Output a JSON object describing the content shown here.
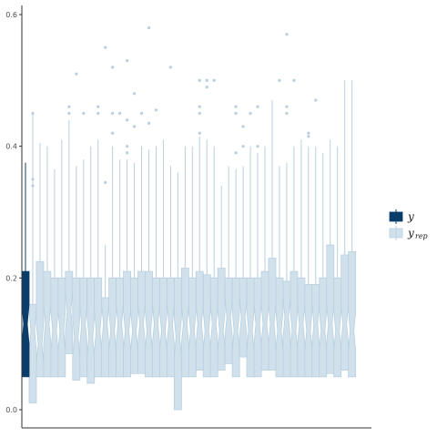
{
  "chart_data": {
    "type": "boxplot",
    "title": "",
    "xlabel": "",
    "ylabel": "",
    "ylim": [
      0,
      0.6
    ],
    "y_ticks": [
      "0.0",
      "0.2",
      "0.4",
      "0.6"
    ],
    "grid": false,
    "legend_position": "right",
    "legend": [
      {
        "name": "y",
        "sub": "",
        "color": "#0b3d6b",
        "fill": "#0b3d6b"
      },
      {
        "name": "y",
        "sub": "rep",
        "color": "#b8cfe0",
        "fill": "#d1e1ec"
      }
    ],
    "observed": {
      "name": "y",
      "min": 0.05,
      "q1": 0.05,
      "median": 0.13,
      "q3": 0.21,
      "max": 0.375,
      "notch_lo": 0.1,
      "notch_hi": 0.16,
      "outliers": []
    },
    "replicates": [
      {
        "min": 0.01,
        "q1": 0.01,
        "median": 0.12,
        "q3": 0.16,
        "max": 0.45,
        "notch_lo": 0.09,
        "notch_hi": 0.15,
        "outliers": [
          0.34,
          0.35,
          0.45
        ]
      },
      {
        "min": 0.05,
        "q1": 0.05,
        "median": 0.1,
        "q3": 0.225,
        "max": 0.405,
        "notch_lo": 0.07,
        "notch_hi": 0.13,
        "outliers": []
      },
      {
        "min": 0.05,
        "q1": 0.05,
        "median": 0.13,
        "q3": 0.21,
        "max": 0.4,
        "notch_lo": 0.1,
        "notch_hi": 0.16,
        "outliers": []
      },
      {
        "min": 0.05,
        "q1": 0.05,
        "median": 0.12,
        "q3": 0.2,
        "max": 0.365,
        "notch_lo": 0.09,
        "notch_hi": 0.15,
        "outliers": []
      },
      {
        "min": 0.05,
        "q1": 0.05,
        "median": 0.12,
        "q3": 0.2,
        "max": 0.41,
        "notch_lo": 0.09,
        "notch_hi": 0.15,
        "outliers": []
      },
      {
        "min": 0.085,
        "q1": 0.085,
        "median": 0.15,
        "q3": 0.21,
        "max": 0.44,
        "notch_lo": 0.12,
        "notch_hi": 0.18,
        "outliers": [
          0.45,
          0.46
        ]
      },
      {
        "min": 0.045,
        "q1": 0.045,
        "median": 0.11,
        "q3": 0.2,
        "max": 0.37,
        "notch_lo": 0.08,
        "notch_hi": 0.14,
        "outliers": [
          0.51
        ]
      },
      {
        "min": 0.05,
        "q1": 0.05,
        "median": 0.13,
        "q3": 0.2,
        "max": 0.38,
        "notch_lo": 0.1,
        "notch_hi": 0.16,
        "outliers": [
          0.45
        ]
      },
      {
        "min": 0.04,
        "q1": 0.04,
        "median": 0.11,
        "q3": 0.2,
        "max": 0.4,
        "notch_lo": 0.08,
        "notch_hi": 0.14,
        "outliers": []
      },
      {
        "min": 0.05,
        "q1": 0.05,
        "median": 0.12,
        "q3": 0.2,
        "max": 0.41,
        "notch_lo": 0.09,
        "notch_hi": 0.15,
        "outliers": [
          0.45,
          0.46
        ]
      },
      {
        "min": 0.05,
        "q1": 0.05,
        "median": 0.13,
        "q3": 0.17,
        "max": 0.25,
        "notch_lo": 0.1,
        "notch_hi": 0.16,
        "outliers": [
          0.345,
          0.55
        ]
      },
      {
        "min": 0.05,
        "q1": 0.05,
        "median": 0.12,
        "q3": 0.2,
        "max": 0.4,
        "notch_lo": 0.09,
        "notch_hi": 0.15,
        "outliers": [
          0.42,
          0.45,
          0.52
        ]
      },
      {
        "min": 0.05,
        "q1": 0.05,
        "median": 0.13,
        "q3": 0.2,
        "max": 0.38,
        "notch_lo": 0.1,
        "notch_hi": 0.16,
        "outliers": [
          0.45
        ]
      },
      {
        "min": 0.05,
        "q1": 0.05,
        "median": 0.12,
        "q3": 0.21,
        "max": 0.38,
        "notch_lo": 0.09,
        "notch_hi": 0.15,
        "outliers": [
          0.39,
          0.4,
          0.44,
          0.53
        ]
      },
      {
        "min": 0.055,
        "q1": 0.055,
        "median": 0.12,
        "q3": 0.2,
        "max": 0.375,
        "notch_lo": 0.09,
        "notch_hi": 0.15,
        "outliers": [
          0.43,
          0.48
        ]
      },
      {
        "min": 0.055,
        "q1": 0.055,
        "median": 0.13,
        "q3": 0.21,
        "max": 0.4,
        "notch_lo": 0.1,
        "notch_hi": 0.16,
        "outliers": [
          0.45
        ]
      },
      {
        "min": 0.05,
        "q1": 0.05,
        "median": 0.12,
        "q3": 0.21,
        "max": 0.395,
        "notch_lo": 0.09,
        "notch_hi": 0.15,
        "outliers": [
          0.435,
          0.58
        ]
      },
      {
        "min": 0.05,
        "q1": 0.05,
        "median": 0.13,
        "q3": 0.2,
        "max": 0.4,
        "notch_lo": 0.1,
        "notch_hi": 0.16,
        "outliers": [
          0.455
        ]
      },
      {
        "min": 0.05,
        "q1": 0.05,
        "median": 0.12,
        "q3": 0.2,
        "max": 0.41,
        "notch_lo": 0.09,
        "notch_hi": 0.15,
        "outliers": []
      },
      {
        "min": 0.05,
        "q1": 0.05,
        "median": 0.13,
        "q3": 0.2,
        "max": 0.37,
        "notch_lo": 0.1,
        "notch_hi": 0.16,
        "outliers": [
          0.52
        ]
      },
      {
        "min": 0.0,
        "q1": 0.0,
        "median": 0.11,
        "q3": 0.2,
        "max": 0.36,
        "notch_lo": 0.08,
        "notch_hi": 0.14,
        "outliers": []
      },
      {
        "min": 0.05,
        "q1": 0.05,
        "median": 0.13,
        "q3": 0.215,
        "max": 0.4,
        "notch_lo": 0.1,
        "notch_hi": 0.16,
        "outliers": []
      },
      {
        "min": 0.05,
        "q1": 0.05,
        "median": 0.12,
        "q3": 0.2,
        "max": 0.4,
        "notch_lo": 0.09,
        "notch_hi": 0.15,
        "outliers": []
      },
      {
        "min": 0.06,
        "q1": 0.06,
        "median": 0.13,
        "q3": 0.21,
        "max": 0.415,
        "notch_lo": 0.1,
        "notch_hi": 0.16,
        "outliers": [
          0.42,
          0.45,
          0.46,
          0.5
        ]
      },
      {
        "min": 0.05,
        "q1": 0.05,
        "median": 0.12,
        "q3": 0.205,
        "max": 0.41,
        "notch_lo": 0.09,
        "notch_hi": 0.15,
        "outliers": [
          0.49,
          0.5
        ]
      },
      {
        "min": 0.05,
        "q1": 0.05,
        "median": 0.13,
        "q3": 0.2,
        "max": 0.4,
        "notch_lo": 0.1,
        "notch_hi": 0.16,
        "outliers": [
          0.5
        ]
      },
      {
        "min": 0.06,
        "q1": 0.06,
        "median": 0.12,
        "q3": 0.215,
        "max": 0.34,
        "notch_lo": 0.09,
        "notch_hi": 0.15,
        "outliers": []
      },
      {
        "min": 0.07,
        "q1": 0.07,
        "median": 0.14,
        "q3": 0.2,
        "max": 0.37,
        "notch_lo": 0.11,
        "notch_hi": 0.17,
        "outliers": []
      },
      {
        "min": 0.05,
        "q1": 0.05,
        "median": 0.12,
        "q3": 0.2,
        "max": 0.365,
        "notch_lo": 0.09,
        "notch_hi": 0.15,
        "outliers": [
          0.39,
          0.45,
          0.46
        ]
      },
      {
        "min": 0.08,
        "q1": 0.08,
        "median": 0.14,
        "q3": 0.2,
        "max": 0.37,
        "notch_lo": 0.11,
        "notch_hi": 0.17,
        "outliers": [
          0.4,
          0.43
        ]
      },
      {
        "min": 0.05,
        "q1": 0.05,
        "median": 0.12,
        "q3": 0.2,
        "max": 0.4,
        "notch_lo": 0.09,
        "notch_hi": 0.15,
        "outliers": [
          0.45
        ]
      },
      {
        "min": 0.05,
        "q1": 0.05,
        "median": 0.13,
        "q3": 0.2,
        "max": 0.39,
        "notch_lo": 0.1,
        "notch_hi": 0.16,
        "outliers": [
          0.4,
          0.46
        ]
      },
      {
        "min": 0.06,
        "q1": 0.06,
        "median": 0.13,
        "q3": 0.21,
        "max": 0.4,
        "notch_lo": 0.1,
        "notch_hi": 0.16,
        "outliers": []
      },
      {
        "min": 0.06,
        "q1": 0.06,
        "median": 0.13,
        "q3": 0.23,
        "max": 0.47,
        "notch_lo": 0.1,
        "notch_hi": 0.16,
        "outliers": []
      },
      {
        "min": 0.05,
        "q1": 0.05,
        "median": 0.12,
        "q3": 0.2,
        "max": 0.37,
        "notch_lo": 0.09,
        "notch_hi": 0.15,
        "outliers": [
          0.5
        ]
      },
      {
        "min": 0.05,
        "q1": 0.05,
        "median": 0.14,
        "q3": 0.195,
        "max": 0.375,
        "notch_lo": 0.11,
        "notch_hi": 0.17,
        "outliers": [
          0.45,
          0.46,
          0.57
        ]
      },
      {
        "min": 0.05,
        "q1": 0.05,
        "median": 0.12,
        "q3": 0.21,
        "max": 0.4,
        "notch_lo": 0.09,
        "notch_hi": 0.15,
        "outliers": [
          0.5
        ]
      },
      {
        "min": 0.05,
        "q1": 0.05,
        "median": 0.13,
        "q3": 0.2,
        "max": 0.41,
        "notch_lo": 0.1,
        "notch_hi": 0.16,
        "outliers": []
      },
      {
        "min": 0.05,
        "q1": 0.05,
        "median": 0.12,
        "q3": 0.19,
        "max": 0.4,
        "notch_lo": 0.09,
        "notch_hi": 0.15,
        "outliers": [
          0.415,
          0.42
        ]
      },
      {
        "min": 0.05,
        "q1": 0.05,
        "median": 0.13,
        "q3": 0.19,
        "max": 0.4,
        "notch_lo": 0.1,
        "notch_hi": 0.16,
        "outliers": [
          0.47
        ]
      },
      {
        "min": 0.05,
        "q1": 0.05,
        "median": 0.12,
        "q3": 0.2,
        "max": 0.39,
        "notch_lo": 0.09,
        "notch_hi": 0.15,
        "outliers": []
      },
      {
        "min": 0.055,
        "q1": 0.055,
        "median": 0.13,
        "q3": 0.25,
        "max": 0.41,
        "notch_lo": 0.1,
        "notch_hi": 0.16,
        "outliers": []
      },
      {
        "min": 0.05,
        "q1": 0.05,
        "median": 0.12,
        "q3": 0.2,
        "max": 0.4,
        "notch_lo": 0.09,
        "notch_hi": 0.15,
        "outliers": []
      },
      {
        "min": 0.06,
        "q1": 0.06,
        "median": 0.13,
        "q3": 0.235,
        "max": 0.5,
        "notch_lo": 0.1,
        "notch_hi": 0.16,
        "outliers": []
      },
      {
        "min": 0.05,
        "q1": 0.05,
        "median": 0.12,
        "q3": 0.24,
        "max": 0.5,
        "notch_lo": 0.09,
        "notch_hi": 0.15,
        "outliers": []
      }
    ]
  }
}
